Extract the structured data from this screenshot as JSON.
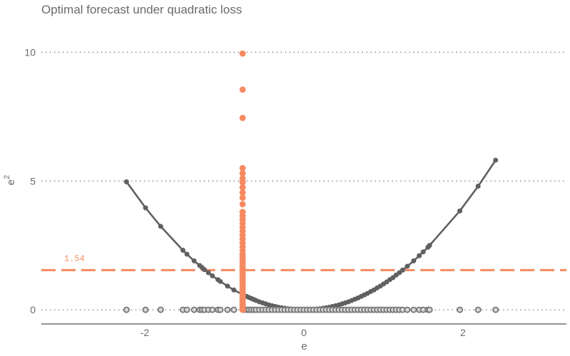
{
  "colors": {
    "curve": "#606060",
    "accent": "#f58a60",
    "axis": "#555555",
    "grid": "#7a7a7a",
    "rug_fill": "#d9d9d9",
    "rug_stroke": "#777777"
  },
  "chart_data": {
    "type": "line",
    "title": "Optimal forecast under quadratic loss",
    "xlabel": "e",
    "ylabel": "e",
    "ylabel_superscript": "2",
    "xlim": [
      -3.3,
      3.3
    ],
    "ylim": [
      -0.55,
      11.2
    ],
    "xticks": [
      -2,
      0,
      2
    ],
    "xtick_labels": [
      "-2",
      "0",
      "2"
    ],
    "yticks": [
      0,
      5,
      10
    ],
    "ytick_labels": [
      "0",
      "5",
      "10"
    ],
    "grid": "horizontal dotted",
    "series": [
      {
        "kind": "curve",
        "x": [
          -2.23,
          -1.99,
          -1.8,
          -1.52,
          -1.47,
          -1.38,
          -1.31,
          -1.28,
          -1.25,
          -1.2,
          -1.15,
          -1.08,
          -1.05,
          -0.96,
          -0.88,
          -0.76,
          -0.72,
          -0.69,
          -0.66,
          -0.63,
          -0.6,
          -0.56,
          -0.52,
          -0.48,
          -0.44,
          -0.4,
          -0.36,
          -0.32,
          -0.28,
          -0.24,
          -0.2,
          -0.16,
          -0.12,
          -0.08,
          -0.04,
          0.0,
          0.04,
          0.08,
          0.12,
          0.16,
          0.2,
          0.24,
          0.28,
          0.32,
          0.36,
          0.4,
          0.44,
          0.48,
          0.52,
          0.56,
          0.6,
          0.64,
          0.68,
          0.72,
          0.76,
          0.8,
          0.84,
          0.88,
          0.92,
          0.96,
          1.0,
          1.04,
          1.08,
          1.12,
          1.16,
          1.2,
          1.24,
          1.3,
          1.38,
          1.45,
          1.5,
          1.56,
          1.58,
          1.96,
          2.19,
          2.41
        ],
        "y": [
          4.97,
          3.96,
          3.24,
          2.31,
          2.16,
          1.9,
          1.72,
          1.64,
          1.56,
          1.44,
          1.32,
          1.17,
          1.1,
          0.92,
          0.77,
          0.58,
          0.52,
          0.48,
          0.44,
          0.4,
          0.36,
          0.31,
          0.27,
          0.23,
          0.19,
          0.16,
          0.13,
          0.1,
          0.08,
          0.06,
          0.04,
          0.03,
          0.01,
          0.01,
          0.0,
          0.0,
          0.0,
          0.01,
          0.01,
          0.03,
          0.04,
          0.06,
          0.08,
          0.1,
          0.13,
          0.16,
          0.19,
          0.23,
          0.27,
          0.31,
          0.36,
          0.41,
          0.46,
          0.52,
          0.58,
          0.64,
          0.71,
          0.77,
          0.85,
          0.92,
          1.0,
          1.08,
          1.17,
          1.25,
          1.35,
          1.44,
          1.54,
          1.69,
          1.9,
          2.1,
          2.25,
          2.43,
          2.5,
          3.84,
          4.8,
          5.81
        ]
      },
      {
        "kind": "rug",
        "x": [
          -2.23,
          -1.99,
          -1.8,
          -1.52,
          -1.47,
          -1.38,
          -1.31,
          -1.28,
          -1.25,
          -1.2,
          -1.15,
          -1.08,
          -1.05,
          -0.96,
          -0.88,
          -0.76,
          -0.72,
          -0.69,
          -0.66,
          -0.63,
          -0.6,
          -0.56,
          -0.52,
          -0.48,
          -0.44,
          -0.4,
          -0.36,
          -0.32,
          -0.28,
          -0.24,
          -0.2,
          -0.16,
          -0.12,
          -0.08,
          -0.04,
          0.0,
          0.04,
          0.08,
          0.12,
          0.16,
          0.2,
          0.24,
          0.28,
          0.32,
          0.36,
          0.4,
          0.44,
          0.48,
          0.52,
          0.56,
          0.6,
          0.64,
          0.68,
          0.72,
          0.76,
          0.8,
          0.84,
          0.88,
          0.92,
          0.96,
          1.0,
          1.04,
          1.08,
          1.12,
          1.16,
          1.2,
          1.24,
          1.3,
          1.38,
          1.45,
          1.5,
          1.56,
          1.58,
          1.96,
          2.19,
          2.41
        ],
        "y": 0
      },
      {
        "kind": "losses_at_forecast",
        "x": -0.77,
        "y": [
          0.0,
          0.05,
          0.1,
          0.15,
          0.2,
          0.27,
          0.34,
          0.42,
          0.5,
          0.58,
          0.66,
          0.75,
          0.84,
          0.93,
          1.02,
          1.12,
          1.22,
          1.32,
          1.42,
          1.52,
          1.62,
          1.72,
          1.83,
          1.94,
          2.05,
          2.16,
          2.3,
          2.45,
          2.6,
          2.75,
          2.9,
          3.05,
          3.2,
          3.35,
          3.5,
          3.65,
          3.8,
          4.1,
          4.35,
          4.55,
          4.75,
          4.95,
          5.1,
          5.3,
          5.5,
          7.45,
          8.55,
          9.95
        ]
      }
    ],
    "reference_line": {
      "y": 1.54,
      "label": "1.54",
      "style": "dashed"
    }
  }
}
